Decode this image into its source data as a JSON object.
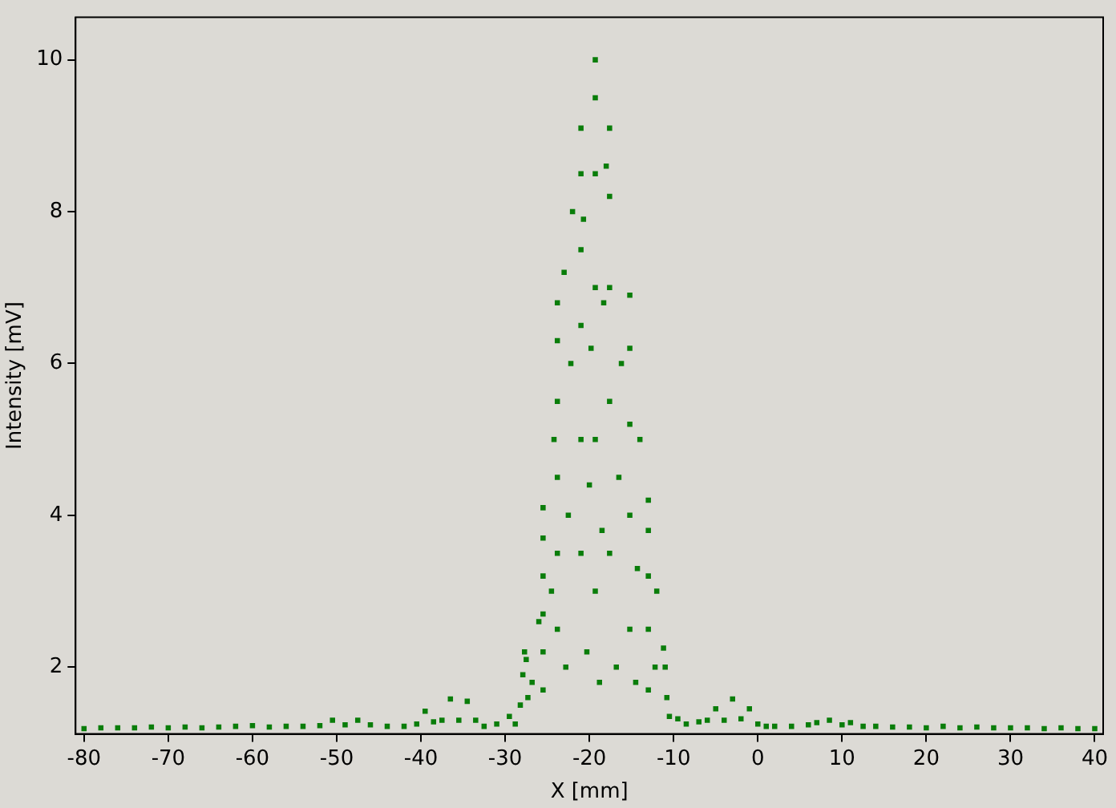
{
  "chart_data": {
    "type": "scatter",
    "xlabel": "X [mm]",
    "ylabel": "Intensity [mV]",
    "marker": "square",
    "grid": false,
    "legend": false,
    "xlim": [
      -81,
      41
    ],
    "ylim": [
      1.12,
      10.56
    ],
    "xticks": [
      -80,
      -70,
      -60,
      -50,
      -40,
      -30,
      -20,
      -10,
      0,
      10,
      20,
      30,
      40
    ],
    "yticks": [
      2,
      4,
      6,
      8,
      10
    ],
    "series": [
      {
        "color": "#0a7d0a",
        "x": [
          -80,
          -78,
          -76,
          -74,
          -72,
          -70,
          -68,
          -66,
          -64,
          -62,
          -60,
          -58,
          -56,
          -54,
          -52,
          -50.5,
          -49,
          -47.5,
          -46,
          -44,
          -42,
          -40.5,
          -39.5,
          -38.5,
          -37.5,
          -36.5,
          -35.5,
          -34.5,
          -33.5,
          -32.5,
          -31,
          -29.5,
          -28.8,
          -28.2,
          -27.9,
          -27.7,
          -27.5,
          -27.3,
          -25.5,
          -25.5,
          -25.5,
          -25.5,
          -25.5,
          -25.5,
          -23.8,
          -23.8,
          -23.8,
          -23.8,
          -23.8,
          -23.8,
          -21,
          -21,
          -21,
          -21,
          -21,
          -21,
          -19.3,
          -19.3,
          -19.3,
          -19.3,
          -19.3,
          -19.3,
          -17.6,
          -17.6,
          -17.6,
          -17.6,
          -17.6,
          -15.2,
          -15.2,
          -15.2,
          -15.2,
          -15.2,
          -13,
          -13,
          -13,
          -13,
          -13,
          -26.8,
          -26,
          -24.5,
          -24.2,
          -22.8,
          -22.5,
          -22.2,
          -20.3,
          -20,
          -19.8,
          -18.8,
          -18.5,
          -18.3,
          -16.8,
          -16.5,
          -16.2,
          -14.5,
          -14.3,
          -14,
          -12.2,
          -12,
          -22,
          -20.7,
          -18,
          -23,
          -11.2,
          -11,
          -10.8,
          -10.5,
          -9.5,
          -8.5,
          -7,
          -6,
          -5,
          -4,
          -3,
          -2,
          -1,
          0,
          1,
          2,
          4,
          6,
          7,
          8.5,
          10,
          11,
          12.5,
          14,
          16,
          18,
          20,
          22,
          24,
          26,
          28,
          30,
          32,
          34,
          36,
          38,
          40
        ],
        "values": [
          1.19,
          1.2,
          1.2,
          1.2,
          1.21,
          1.2,
          1.21,
          1.2,
          1.21,
          1.22,
          1.23,
          1.21,
          1.22,
          1.22,
          1.23,
          1.3,
          1.24,
          1.3,
          1.24,
          1.22,
          1.22,
          1.25,
          1.42,
          1.28,
          1.3,
          1.58,
          1.3,
          1.55,
          1.3,
          1.22,
          1.25,
          1.35,
          1.25,
          1.5,
          1.9,
          2.2,
          2.1,
          1.6,
          1.7,
          2.2,
          2.7,
          3.2,
          3.7,
          4.1,
          2.5,
          3.5,
          4.5,
          5.5,
          6.3,
          6.8,
          3.5,
          5,
          6.5,
          7.5,
          8.5,
          9.1,
          3,
          5,
          7,
          8.5,
          9.5,
          10,
          3.5,
          5.5,
          7,
          8.2,
          9.1,
          2.5,
          4,
          5.2,
          6.2,
          6.9,
          1.7,
          2.5,
          3.2,
          3.8,
          4.2,
          1.8,
          2.6,
          3,
          5,
          2,
          4,
          6,
          2.2,
          4.4,
          6.2,
          1.8,
          3.8,
          6.8,
          2,
          4.5,
          6,
          1.8,
          3.3,
          5,
          2,
          3,
          8,
          7.9,
          8.6,
          7.2,
          2.25,
          2,
          1.6,
          1.35,
          1.32,
          1.25,
          1.28,
          1.3,
          1.45,
          1.3,
          1.58,
          1.32,
          1.45,
          1.25,
          1.22,
          1.22,
          1.22,
          1.24,
          1.27,
          1.3,
          1.24,
          1.27,
          1.22,
          1.22,
          1.21,
          1.21,
          1.2,
          1.22,
          1.2,
          1.21,
          1.2,
          1.2,
          1.2,
          1.19,
          1.2,
          1.19,
          1.19
        ]
      }
    ]
  }
}
